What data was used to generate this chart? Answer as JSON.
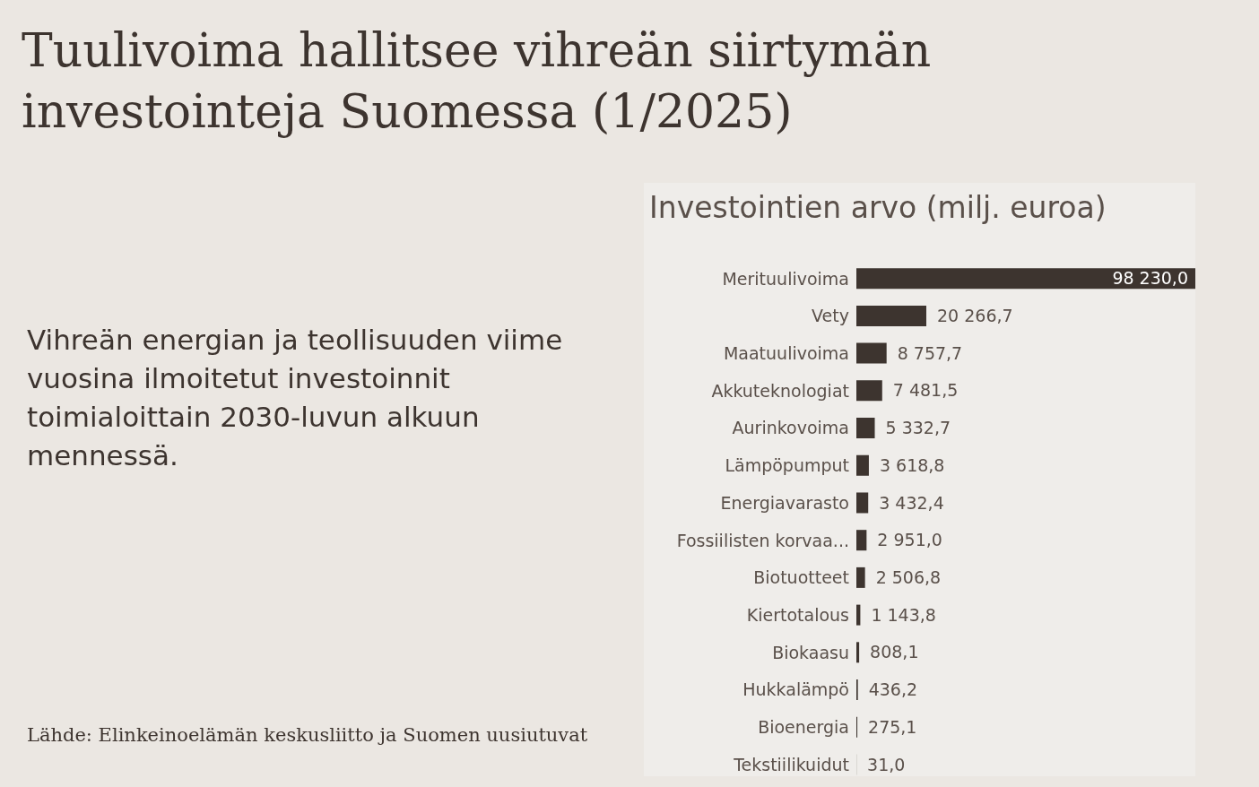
{
  "chart_data": {
    "type": "bar",
    "orientation": "horizontal",
    "title": "Tuulivoima hallitsee vihreän siirtymän investointeja Suomessa (1/2025)",
    "subtitle": "Vihreän energian ja teollisuuden viime vuosina ilmoitetut investoinnit toimialoittain 2030-luvun alkuun mennessä.",
    "annotations": [
      "Investointien arvo (milj. euroa)",
      "Lähde: Elinkeinoelämän keskusliitto ja Suomen uusiutuvat"
    ],
    "categories": [
      "Merituulivoima",
      "Vety",
      "Maatuulivoima",
      "Akkuteknologiat",
      "Aurinkovoima",
      "Lämpöpumput",
      "Energiavarasto",
      "Fossiilisten korvaa...",
      "Biotuotteet",
      "Kiertotalous",
      "Biokaasu",
      "Hukkalämpö",
      "Bioenergia",
      "Tekstiilikuidut"
    ],
    "values": [
      98230.0,
      20266.7,
      8757.7,
      7481.5,
      5332.7,
      3618.8,
      3432.4,
      2951.0,
      2506.8,
      1143.8,
      808.1,
      436.2,
      275.1,
      31.0
    ],
    "value_labels": [
      "98 230,0",
      "20 266,7",
      "8 757,7",
      "7 481,5",
      "5 332,7",
      "3 618,8",
      "3 432,4",
      "2 951,0",
      "2 506,8",
      "1 143,8",
      "808,1",
      "436,2",
      "275,1",
      "31,0"
    ],
    "color": "#3d342f",
    "grid": false,
    "legend": false
  }
}
